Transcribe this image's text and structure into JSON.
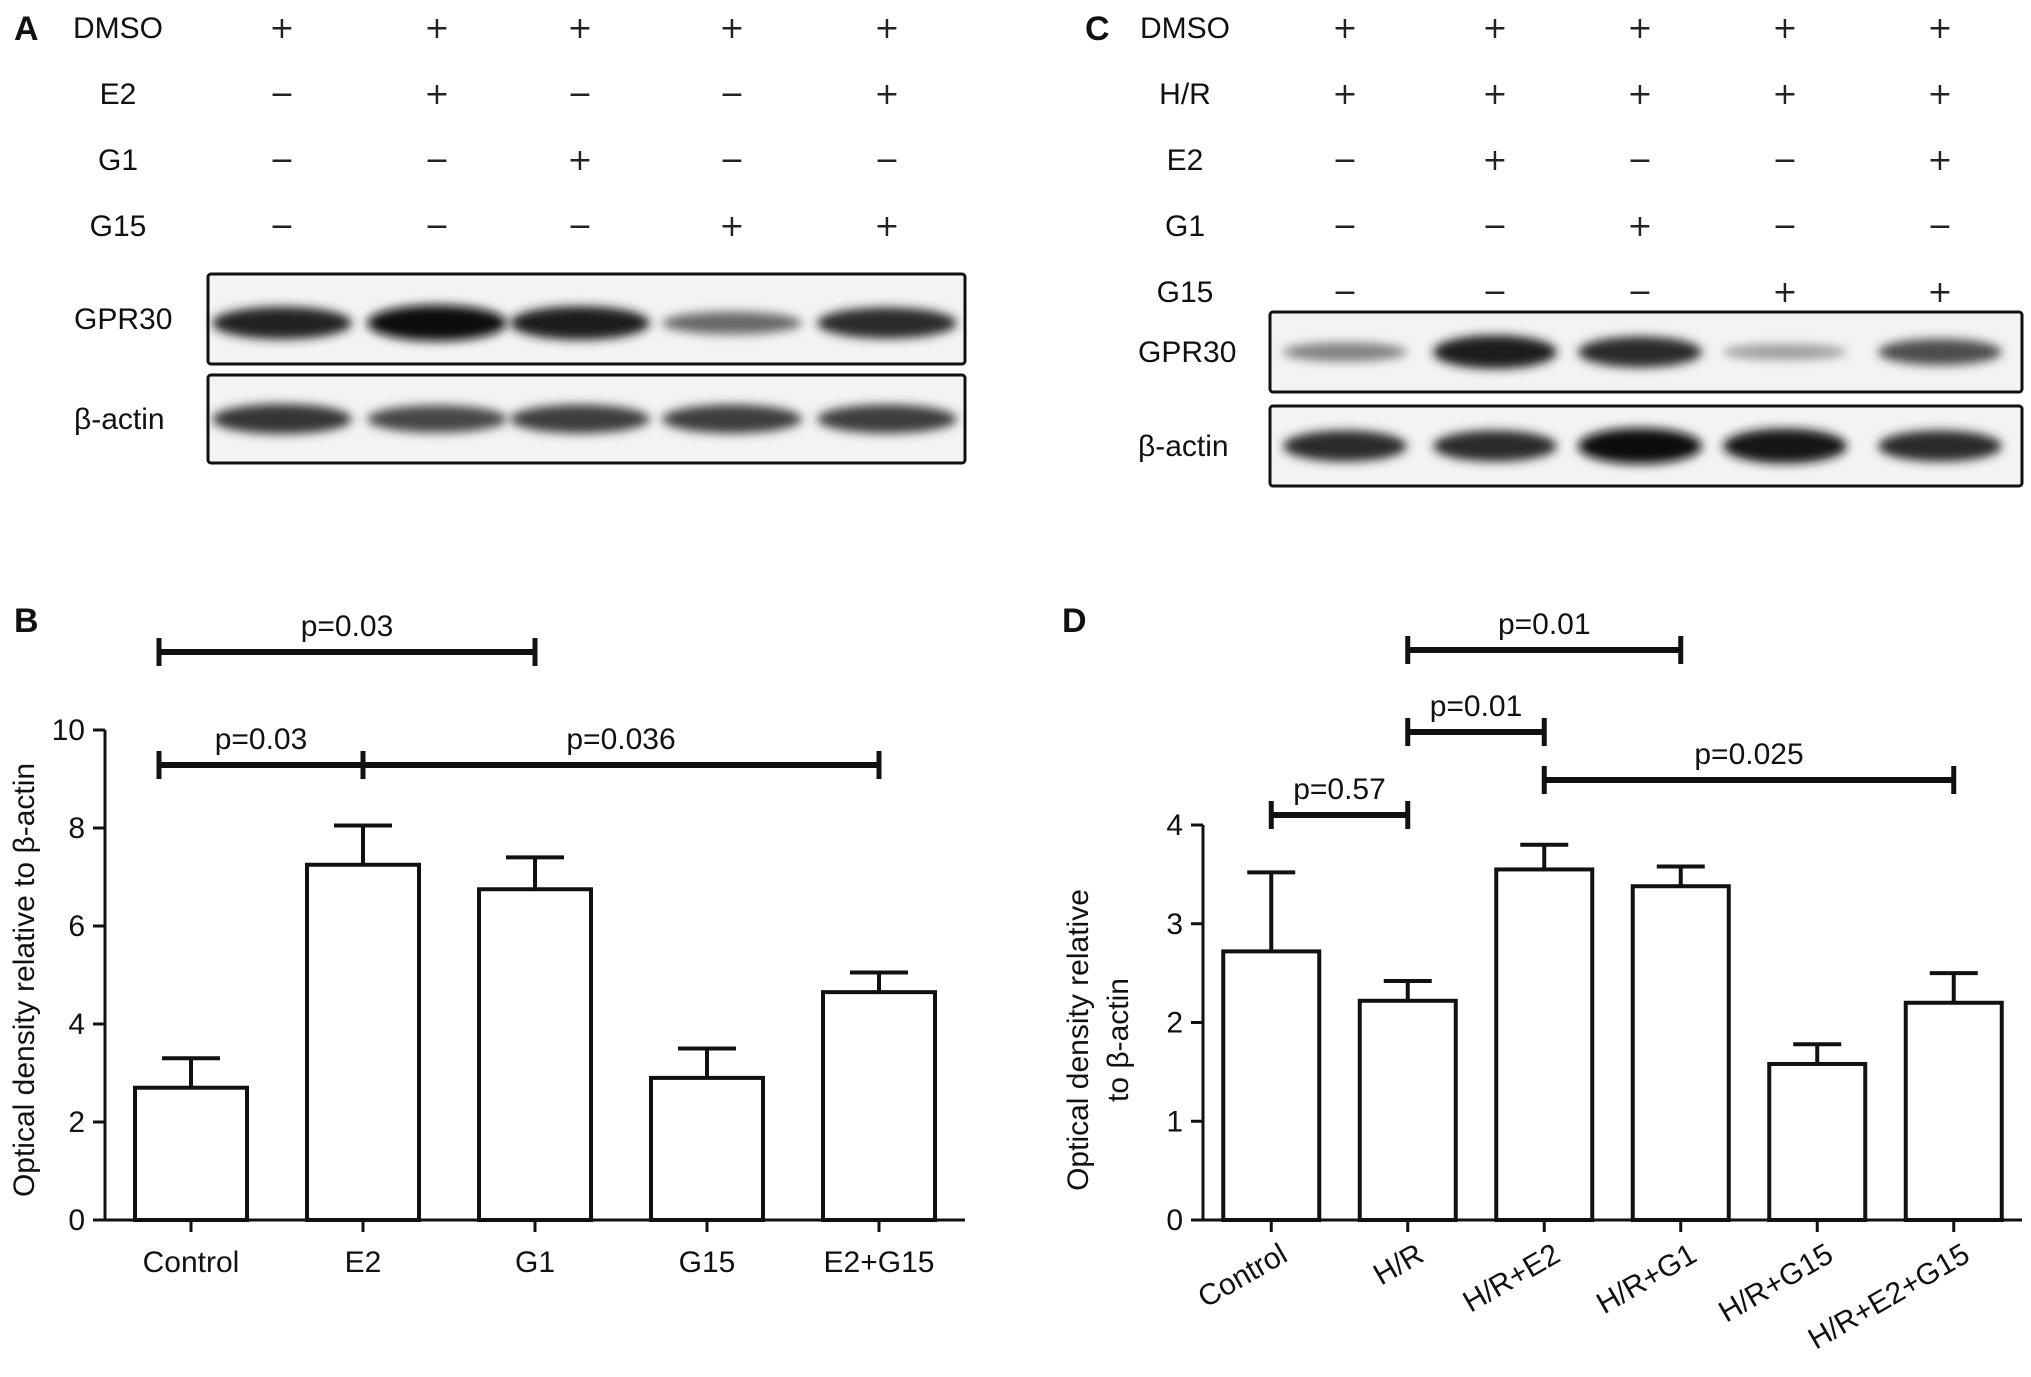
{
  "panels": {
    "A": {
      "letter": "A",
      "rows": [
        {
          "label": "DMSO",
          "signs": [
            "+",
            "+",
            "+",
            "+",
            "+"
          ]
        },
        {
          "label": "E2",
          "signs": [
            "−",
            "+",
            "−",
            "−",
            "+"
          ]
        },
        {
          "label": "G1",
          "signs": [
            "−",
            "−",
            "+",
            "−",
            "−"
          ]
        },
        {
          "label": "G15",
          "signs": [
            "−",
            "−",
            "−",
            "+",
            "+"
          ]
        }
      ],
      "blots": [
        {
          "label": "GPR30",
          "intensity": [
            0.85,
            1.0,
            0.9,
            0.45,
            0.8
          ]
        },
        {
          "label": "β-actin",
          "intensity": [
            0.75,
            0.65,
            0.7,
            0.7,
            0.7
          ]
        }
      ]
    },
    "C": {
      "letter": "C",
      "rows": [
        {
          "label": "DMSO",
          "signs": [
            "+",
            "+",
            "+",
            "+",
            "+"
          ]
        },
        {
          "label": "H/R",
          "signs": [
            "+",
            "+",
            "+",
            "+",
            "+"
          ]
        },
        {
          "label": "E2",
          "signs": [
            "−",
            "+",
            "−",
            "−",
            "+"
          ]
        },
        {
          "label": "G1",
          "signs": [
            "−",
            "−",
            "+",
            "−",
            "−"
          ]
        },
        {
          "label": "G15",
          "signs": [
            "−",
            "−",
            "−",
            "+",
            "+"
          ]
        }
      ],
      "blots": [
        {
          "label": "GPR30",
          "intensity": [
            0.3,
            0.9,
            0.8,
            0.15,
            0.6
          ]
        },
        {
          "label": "β-actin",
          "intensity": [
            0.8,
            0.8,
            1.0,
            0.95,
            0.8
          ]
        }
      ]
    }
  },
  "chart_data": [
    {
      "letter": "B",
      "type": "bar",
      "categories": [
        "Control",
        "E2",
        "G1",
        "G15",
        "E2+G15"
      ],
      "values": [
        2.7,
        7.25,
        6.75,
        2.9,
        4.65
      ],
      "errors": [
        0.6,
        0.8,
        0.65,
        0.6,
        0.4
      ],
      "ylabel": "Optical density relative to β-actin",
      "ylim": [
        0,
        10
      ],
      "yticks": [
        "0",
        "2",
        "4",
        "6",
        "8",
        "10"
      ],
      "comparisons": [
        {
          "from": 0,
          "to": 2,
          "label": "p=0.03"
        },
        {
          "from": 0,
          "to": 1,
          "label": "p=0.03"
        },
        {
          "from": 1,
          "to": 4,
          "label": "p=0.036"
        }
      ]
    },
    {
      "letter": "D",
      "type": "bar",
      "categories": [
        "Control",
        "H/R",
        "H/R+E2",
        "H/R+G1",
        "H/R+G15",
        "H/R+E2+G15"
      ],
      "values": [
        2.72,
        2.22,
        3.55,
        3.38,
        1.58,
        2.2
      ],
      "errors": [
        0.8,
        0.2,
        0.25,
        0.2,
        0.2,
        0.3
      ],
      "ylabel_lines": [
        "Optical density relative",
        "to β-actin"
      ],
      "ylim": [
        0,
        4
      ],
      "yticks": [
        "0",
        "1",
        "2",
        "3",
        "4"
      ],
      "comparisons": [
        {
          "from": 1,
          "to": 3,
          "label": "p=0.01"
        },
        {
          "from": 1,
          "to": 2,
          "label": "p=0.01"
        },
        {
          "from": 0,
          "to": 1,
          "label": "p=0.57"
        },
        {
          "from": 2,
          "to": 5,
          "label": "p=0.025"
        }
      ]
    }
  ]
}
